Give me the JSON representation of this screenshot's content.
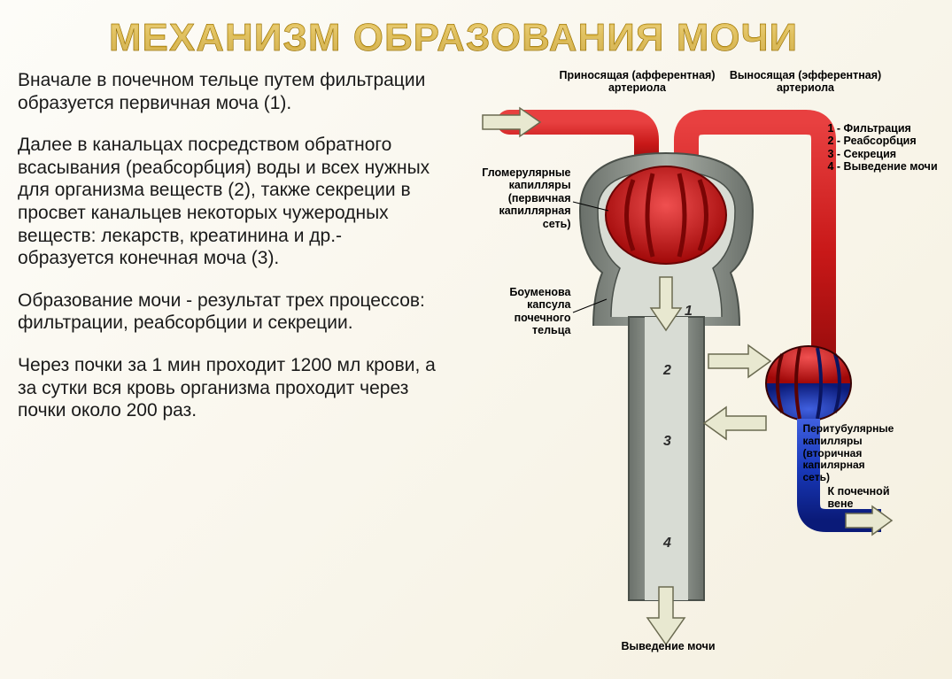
{
  "title": "МЕХАНИЗМ ОБРАЗОВАНИЯ МОЧИ",
  "p1": "Вначале в почечном тельце путем фильтрации образуется первичная моча (1).",
  "p2": "Далее в канальцах посредством обратного всасывания (реабсорбция) воды и всех нужных для организма веществ (2), также секреции в просвет канальцев некоторых чужеродных веществ: лекарств, креатинина и др.- образуется конечная моча (3).",
  "p3": "Образование мочи - результат трех процессов: фильтрации, реабсорбции и секреции.",
  "p4": "Через почки за 1 мин проходит 1200 мл крови, а за сутки вся кровь организма проходит через почки около 200 раз.",
  "labels": {
    "afferent": "Приносящая (афферентная)\nартериола",
    "efferent": "Выносящая (эфферентная)\nартериола",
    "glomerular": "Гломерулярные\nкапилляры\n(первичная\nкапиллярная\nсеть)",
    "bowman": "Боуменова\nкапсула\nпочечного\nтельца",
    "peritubular": "Перитубулярные\nкапилляры\n(вторичная\nкапилярная\nсеть)",
    "renalvein": "К почечной\nвене",
    "excretion": "Выведение мочи",
    "legend": "1 - Фильтрация\n2 - Реабсорбция\n3 - Секреция\n4 - Выведение мочи"
  },
  "colors": {
    "red": "#c81818",
    "red_dark": "#8f0a0a",
    "blue": "#1838b8",
    "blue_dark": "#0a1a78",
    "tubule": "#8a9088",
    "tubule_dark": "#5a605a",
    "tubule_inner": "#c8cec6",
    "arrow_fill": "#e8e8d0",
    "arrow_stroke": "#6a6a50"
  }
}
